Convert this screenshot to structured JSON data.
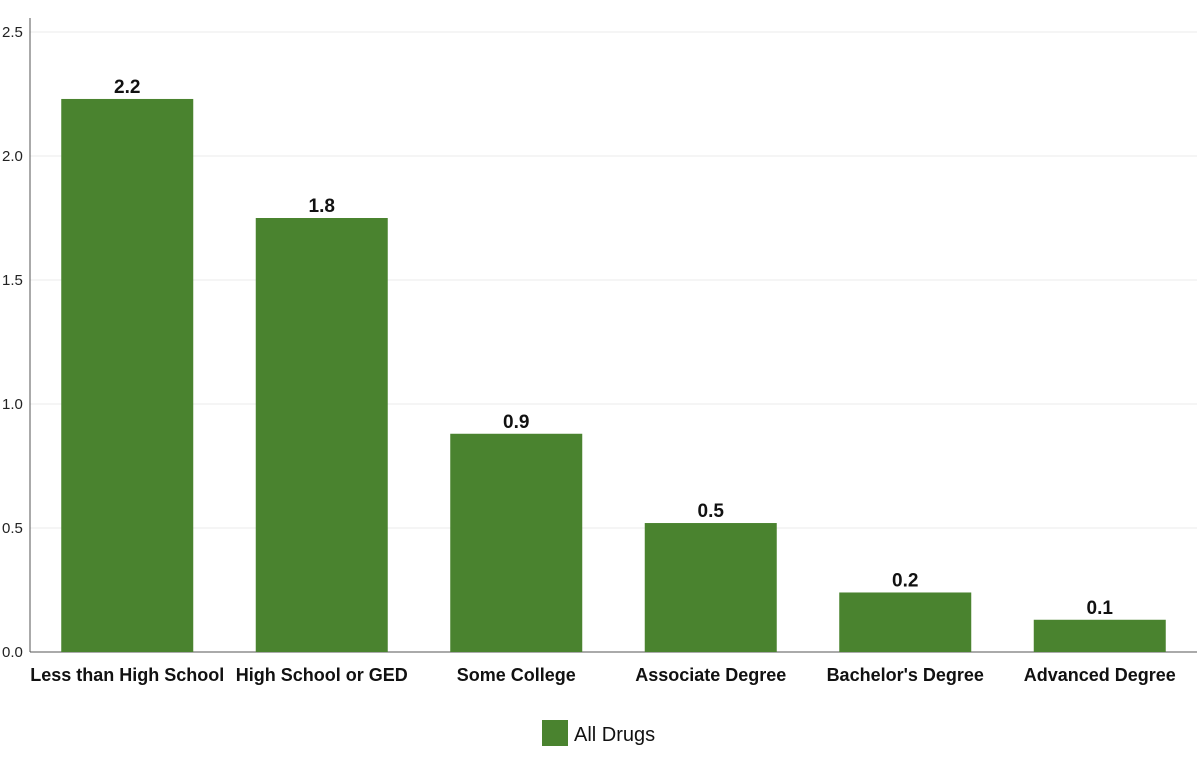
{
  "chart_data": {
    "type": "bar",
    "categories": [
      "Less than High School",
      "High School or GED",
      "Some College",
      "Associate Degree",
      "Bachelor's Degree",
      "Advanced Degree"
    ],
    "series": [
      {
        "name": "All Drugs",
        "values": [
          2.23,
          1.75,
          0.88,
          0.52,
          0.24,
          0.13
        ],
        "labels": [
          "2.2",
          "1.8",
          "0.9",
          "0.5",
          "0.2",
          "0.1"
        ]
      }
    ],
    "yticks": [
      "0.0",
      "0.5",
      "1.0",
      "1.5",
      "2.0",
      "2.5"
    ],
    "ylim": [
      0,
      2.5
    ],
    "title": "",
    "xlabel": "",
    "ylabel": "",
    "grid": true,
    "legend": "bottom-center",
    "colors": {
      "bar": "#4a832f",
      "grid": "#ebebeb",
      "axis": "#555555"
    }
  }
}
